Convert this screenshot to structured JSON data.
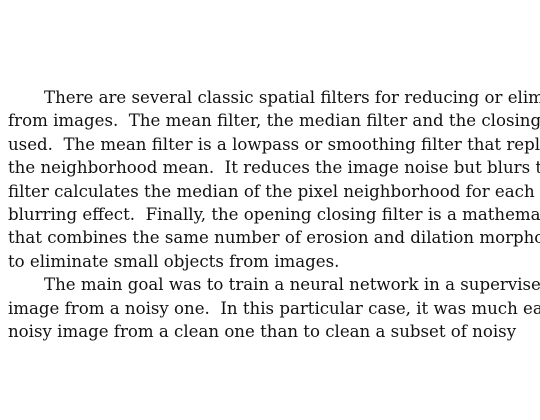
{
  "paragraphs": [
    {
      "lines": [
        "There are several classic spatial filters for reducing or elimina",
        "from images.  The mean filter, the median filter and the closing op",
        "used.  The mean filter is a lowpass or smoothing filter that repl",
        "the neighborhood mean.  It reduces the image noise but blurs the",
        "filter calculates the median of the pixel neighborhood for each p",
        "blurring effect.  Finally, the opening closing filter is a mathema",
        "that combines the same number of erosion and dilation morphol",
        "to eliminate small objects from images."
      ]
    },
    {
      "lines": [
        "The main goal was to train a neural network in a supervised",
        "image from a noisy one.  In this particular case, it was much ea",
        "noisy image from a clean one than to clean a subset of noisy"
      ]
    }
  ]
}
